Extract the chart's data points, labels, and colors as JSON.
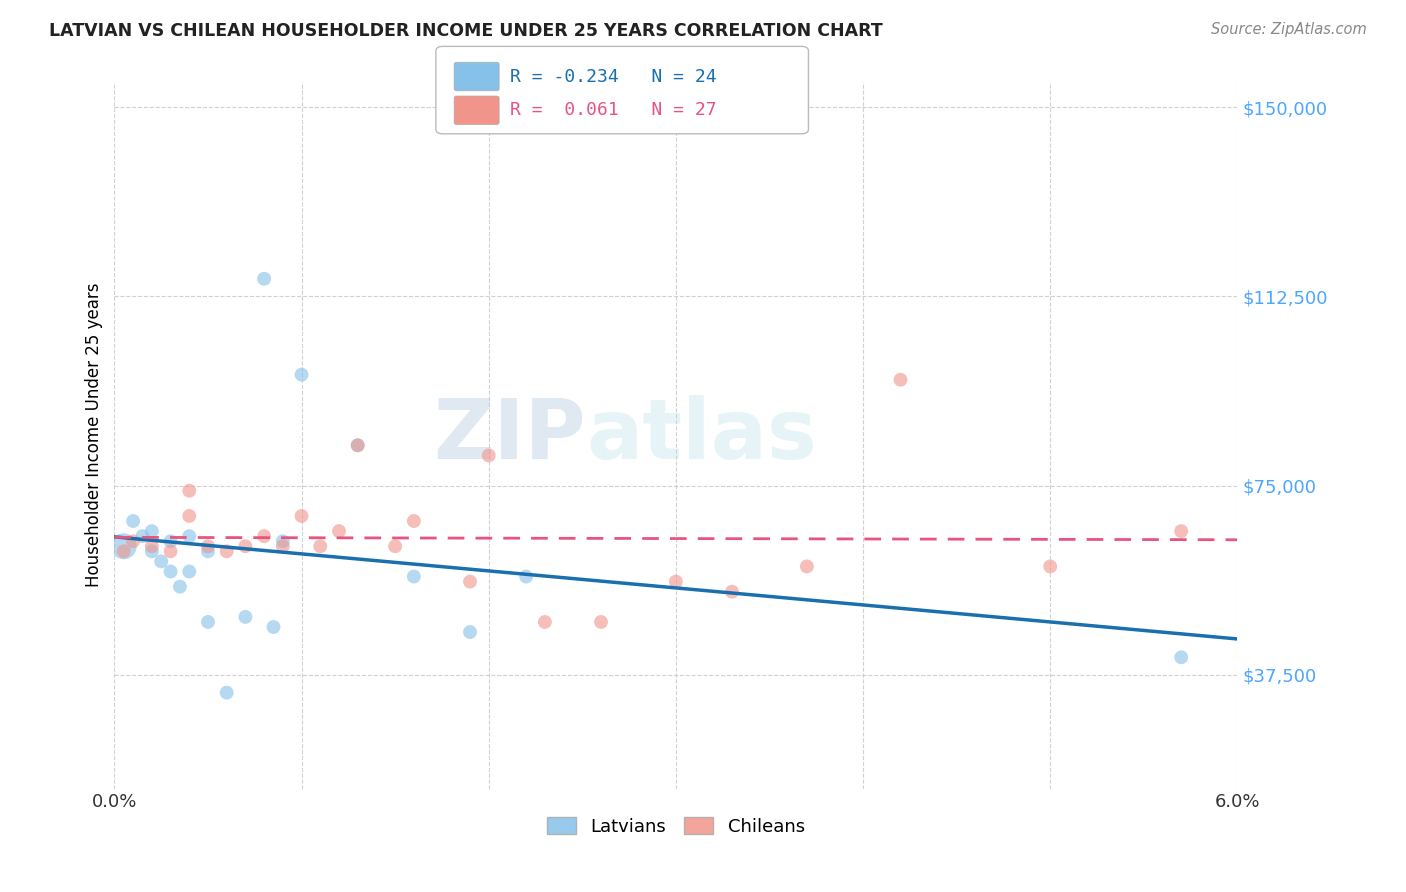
{
  "title": "LATVIAN VS CHILEAN HOUSEHOLDER INCOME UNDER 25 YEARS CORRELATION CHART",
  "source": "Source: ZipAtlas.com",
  "ylabel": "Householder Income Under 25 years",
  "xlim": [
    0.0,
    0.06
  ],
  "ylim": [
    15000,
    155000
  ],
  "yticks": [
    37500,
    75000,
    112500,
    150000
  ],
  "ytick_labels": [
    "$37,500",
    "$75,000",
    "$112,500",
    "$150,000"
  ],
  "xticks": [
    0.0,
    0.01,
    0.02,
    0.03,
    0.04,
    0.05,
    0.06
  ],
  "xtick_labels": [
    "0.0%",
    "",
    "",
    "",
    "",
    "",
    "6.0%"
  ],
  "latvian_R": -0.234,
  "latvian_N": 24,
  "chilean_R": 0.061,
  "chilean_N": 27,
  "latvian_color": "#85c1e9",
  "chilean_color": "#f1948a",
  "trend_latvian_color": "#1a6faf",
  "trend_chilean_color": "#e75480",
  "background_color": "#ffffff",
  "grid_color": "#cccccc",
  "watermark_zip": "ZIP",
  "watermark_atlas": "atlas",
  "latvian_x": [
    0.0005,
    0.001,
    0.0015,
    0.002,
    0.002,
    0.0025,
    0.003,
    0.003,
    0.0035,
    0.004,
    0.004,
    0.005,
    0.005,
    0.006,
    0.007,
    0.008,
    0.0085,
    0.009,
    0.01,
    0.013,
    0.016,
    0.019,
    0.022,
    0.057
  ],
  "latvian_y": [
    63000,
    68000,
    65000,
    62000,
    66000,
    60000,
    58000,
    64000,
    55000,
    65000,
    58000,
    62000,
    48000,
    34000,
    49000,
    116000,
    47000,
    64000,
    97000,
    83000,
    57000,
    46000,
    57000,
    41000
  ],
  "latvian_size": [
    350,
    100,
    100,
    100,
    100,
    100,
    100,
    100,
    100,
    100,
    100,
    100,
    100,
    100,
    100,
    100,
    100,
    100,
    100,
    100,
    100,
    100,
    100,
    100
  ],
  "chilean_x": [
    0.0005,
    0.001,
    0.002,
    0.003,
    0.004,
    0.004,
    0.005,
    0.006,
    0.007,
    0.008,
    0.009,
    0.01,
    0.011,
    0.012,
    0.013,
    0.015,
    0.016,
    0.019,
    0.02,
    0.023,
    0.026,
    0.03,
    0.033,
    0.037,
    0.042,
    0.05,
    0.057
  ],
  "chilean_y": [
    62000,
    64000,
    63000,
    62000,
    74000,
    69000,
    63000,
    62000,
    63000,
    65000,
    63000,
    69000,
    63000,
    66000,
    83000,
    63000,
    68000,
    56000,
    81000,
    48000,
    48000,
    56000,
    54000,
    59000,
    96000,
    59000,
    66000
  ],
  "chilean_size": [
    100,
    100,
    100,
    100,
    100,
    100,
    100,
    100,
    100,
    100,
    100,
    100,
    100,
    100,
    100,
    100,
    100,
    100,
    100,
    100,
    100,
    100,
    100,
    100,
    100,
    100,
    100
  ]
}
